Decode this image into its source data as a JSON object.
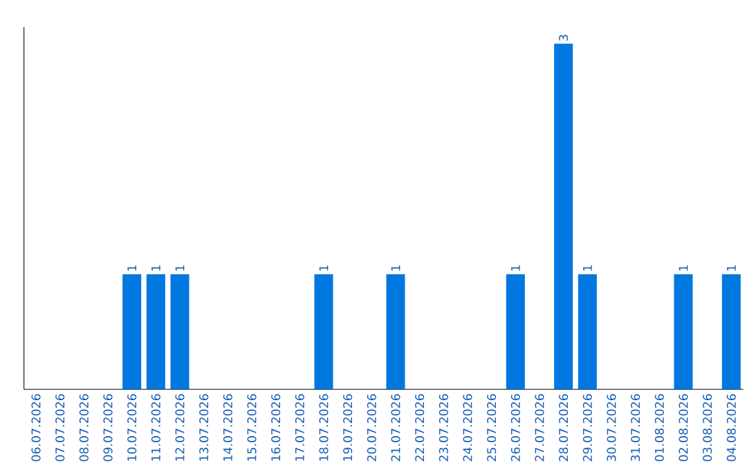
{
  "chart_data": {
    "type": "bar",
    "categories": [
      "06.07.2026",
      "07.07.2026",
      "08.07.2026",
      "09.07.2026",
      "10.07.2026",
      "11.07.2026",
      "12.07.2026",
      "13.07.2026",
      "14.07.2026",
      "15.07.2026",
      "16.07.2026",
      "17.07.2026",
      "18.07.2026",
      "19.07.2026",
      "20.07.2026",
      "21.07.2026",
      "22.07.2026",
      "23.07.2026",
      "24.07.2026",
      "25.07.2026",
      "26.07.2026",
      "27.07.2026",
      "28.07.2026",
      "29.07.2026",
      "30.07.2026",
      "31.07.2026",
      "01.08.2026",
      "02.08.2026",
      "03.08.2026",
      "04.08.2026"
    ],
    "values": [
      0,
      0,
      0,
      0,
      1,
      1,
      1,
      0,
      0,
      0,
      0,
      0,
      1,
      0,
      0,
      1,
      0,
      0,
      0,
      0,
      1,
      0,
      3,
      1,
      0,
      0,
      0,
      1,
      0,
      1
    ],
    "value_labels": [
      null,
      null,
      null,
      null,
      "1",
      "1",
      "1",
      null,
      null,
      null,
      null,
      null,
      "1",
      null,
      null,
      "1",
      null,
      null,
      null,
      null,
      "1",
      null,
      "3",
      "1",
      null,
      null,
      null,
      "1",
      null,
      "1"
    ],
    "color": "#0078e0"
  }
}
